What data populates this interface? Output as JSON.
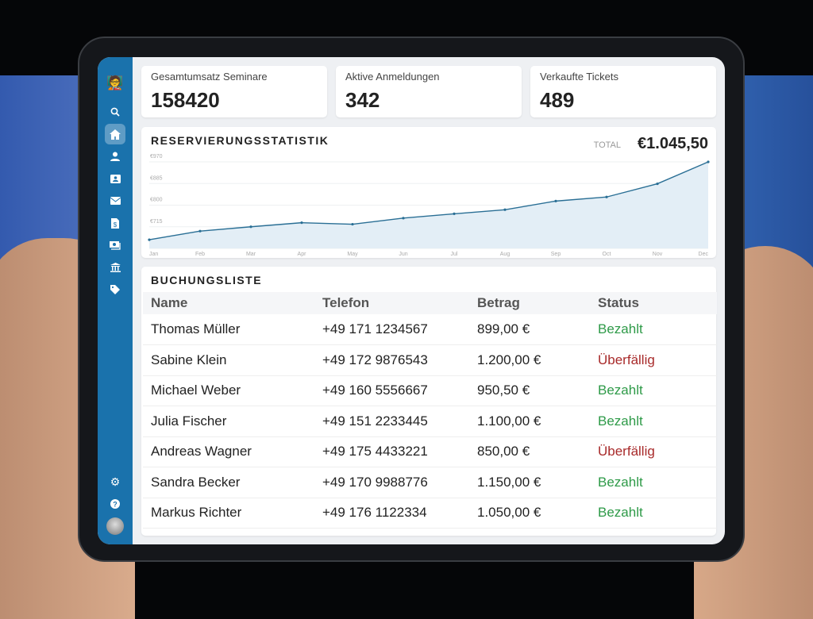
{
  "stats": [
    {
      "label": "Gesamtumsatz Seminare",
      "value": "158420"
    },
    {
      "label": "Aktive Anmeldungen",
      "value": "342"
    },
    {
      "label": "Verkaufte Tickets",
      "value": "489"
    }
  ],
  "sidebar": {
    "icons": [
      "presenter-logo-icon",
      "search-icon",
      "home-icon",
      "user-icon",
      "contact-card-icon",
      "mail-icon",
      "invoice-icon",
      "money-icon",
      "bank-icon",
      "tag-icon"
    ],
    "bottom": [
      "gear-icon",
      "help-icon",
      "avatar"
    ],
    "active": "home-icon",
    "color": "#1a72ac"
  },
  "chart": {
    "title": "RESERVIERUNGSSTATISTIK",
    "total_label": "TOTAL",
    "total_value": "€1.045,50"
  },
  "chart_data": {
    "type": "area",
    "categories": [
      "Jan",
      "Feb",
      "Mar",
      "Apr",
      "May",
      "Jun",
      "Jul",
      "Aug",
      "Sep",
      "Oct",
      "Nov",
      "Dec"
    ],
    "values": [
      664,
      698,
      715,
      731,
      725,
      749,
      766,
      782,
      816,
      832,
      884,
      970
    ],
    "yticks": [
      "€970",
      "€885",
      "€800",
      "€715",
      "€630"
    ],
    "ylim": [
      630,
      970
    ],
    "grid": true,
    "color": "#2a6f95"
  },
  "list": {
    "title": "BUCHUNGSLISTE",
    "columns": [
      "Name",
      "Telefon",
      "Betrag",
      "Status"
    ],
    "rows": [
      [
        "Thomas Müller",
        "+49 171 1234567",
        "899,00 €",
        "Bezahlt"
      ],
      [
        "Sabine Klein",
        "+49 172 9876543",
        "1.200,00 €",
        "Überfällig"
      ],
      [
        "Michael Weber",
        "+49 160 5556667",
        "950,50 €",
        "Bezahlt"
      ],
      [
        "Julia Fischer",
        "+49 151 2233445",
        "1.100,00 €",
        "Bezahlt"
      ],
      [
        "Andreas Wagner",
        "+49 175 4433221",
        "850,00 €",
        "Überfällig"
      ],
      [
        "Sandra Becker",
        "+49 170 9988776",
        "1.150,00 €",
        "Bezahlt"
      ],
      [
        "Markus Richter",
        "+49 176 1122334",
        "1.050,00 €",
        "Bezahlt"
      ]
    ]
  }
}
